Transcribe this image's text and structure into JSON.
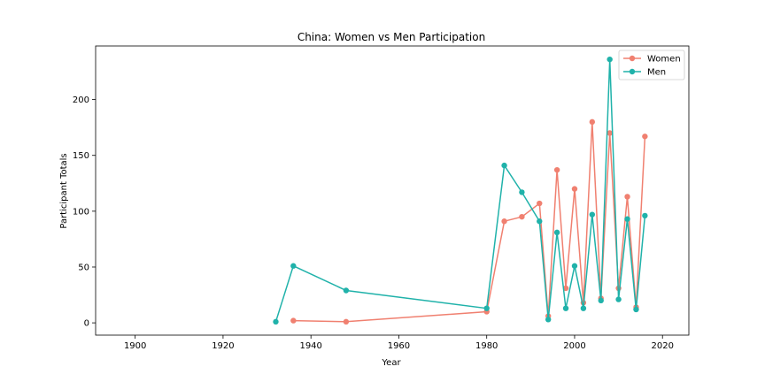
{
  "chart_data": {
    "type": "line",
    "title": "China: Women vs Men Participation",
    "xlabel": "Year",
    "ylabel": "Participant Totals",
    "xlim": [
      1891,
      2026
    ],
    "ylim": [
      -11,
      248
    ],
    "xticks": [
      1900,
      1920,
      1940,
      1960,
      1980,
      2000,
      2020
    ],
    "yticks": [
      0,
      50,
      100,
      150,
      200
    ],
    "grid": false,
    "legend_position": "top-right",
    "series": [
      {
        "name": "Women",
        "color": "#f08070",
        "x": [
          1936,
          1948,
          1980,
          1984,
          1988,
          1992,
          1994,
          1996,
          1998,
          2000,
          2002,
          2004,
          2006,
          2008,
          2010,
          2012,
          2014,
          2016
        ],
        "y": [
          2,
          1,
          10,
          91,
          95,
          107,
          6,
          137,
          31,
          120,
          18,
          180,
          22,
          170,
          31,
          113,
          14,
          167
        ]
      },
      {
        "name": "Men",
        "color": "#20b2aa",
        "x": [
          1932,
          1936,
          1948,
          1980,
          1984,
          1988,
          1992,
          1994,
          1996,
          1998,
          2000,
          2002,
          2004,
          2006,
          2008,
          2010,
          2012,
          2014,
          2016
        ],
        "y": [
          1,
          51,
          29,
          13,
          141,
          117,
          91,
          3,
          81,
          13,
          51,
          13,
          97,
          20,
          236,
          21,
          93,
          12,
          96
        ]
      }
    ]
  }
}
